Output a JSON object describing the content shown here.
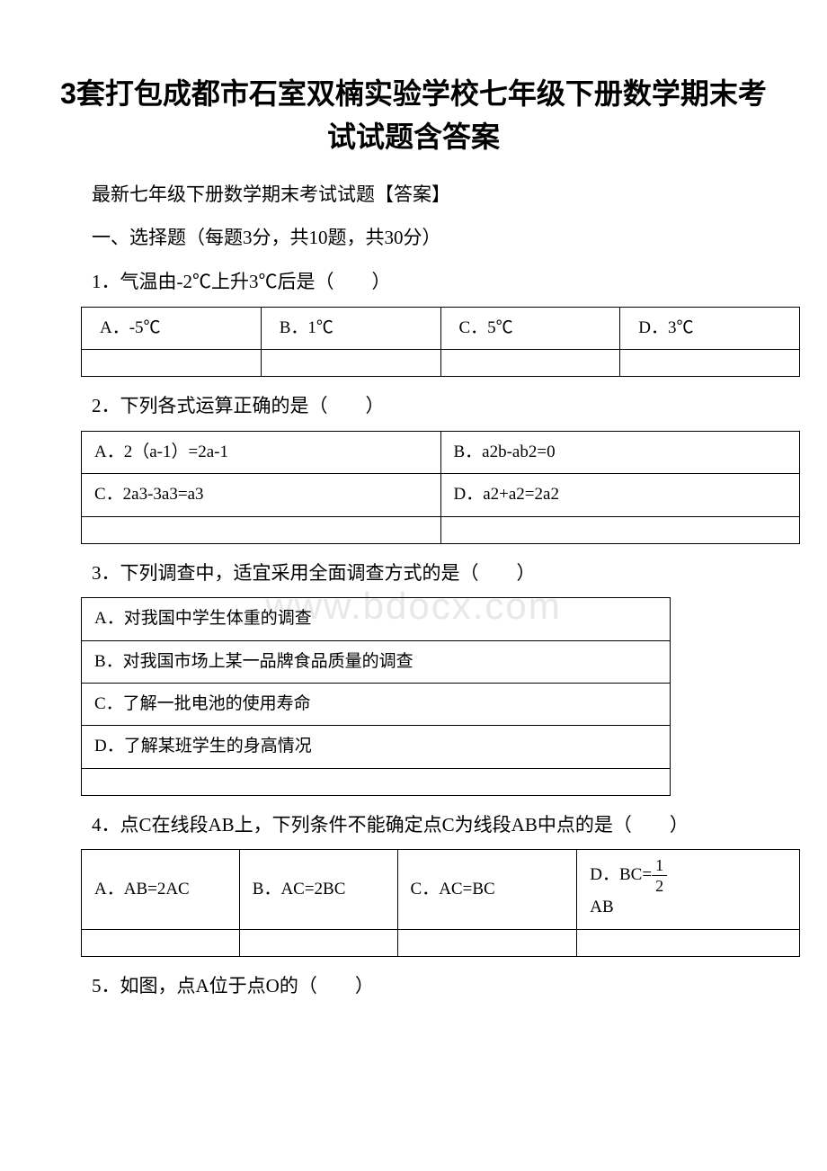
{
  "title": "3套打包成都市石室双楠实验学校七年级下册数学期末考试试题含答案",
  "subtitle": "最新七年级下册数学期末考试试题【答案】",
  "section": "一、选择题（每题3分，共10题，共30分）",
  "watermark": "www.bdocx.com",
  "q1": {
    "text": "1．气温由-2℃上升3℃后是（　　）",
    "optA": "A．-5℃",
    "optB": "B．1℃",
    "optC": "C．5℃",
    "optD": "D．3℃"
  },
  "q2": {
    "text": "2．下列各式运算正确的是（　　）",
    "optA": "A．2（a-1）=2a-1",
    "optB": "B．a2b-ab2=0",
    "optC": "C．2a3-3a3=a3",
    "optD": "D．a2+a2=2a2"
  },
  "q3": {
    "text": "3．下列调查中，适宜采用全面调查方式的是（　　）",
    "optA": "A．对我国中学生体重的调查",
    "optB": "B．对我国市场上某一品牌食品质量的调查",
    "optC": "C．了解一批电池的使用寿命",
    "optD": "D．了解某班学生的身高情况"
  },
  "q4": {
    "text": "4．点C在线段AB上，下列条件不能确定点C为线段AB中点的是（　　）",
    "optA": "A．AB=2AC",
    "optB": "B．AC=2BC",
    "optC": "C．AC=BC",
    "optD_prefix": "D．BC=",
    "optD_num": "1",
    "optD_den": "2",
    "optD_suffix": "AB"
  },
  "q5": {
    "text": "5．如图，点A位于点O的（　　）"
  }
}
